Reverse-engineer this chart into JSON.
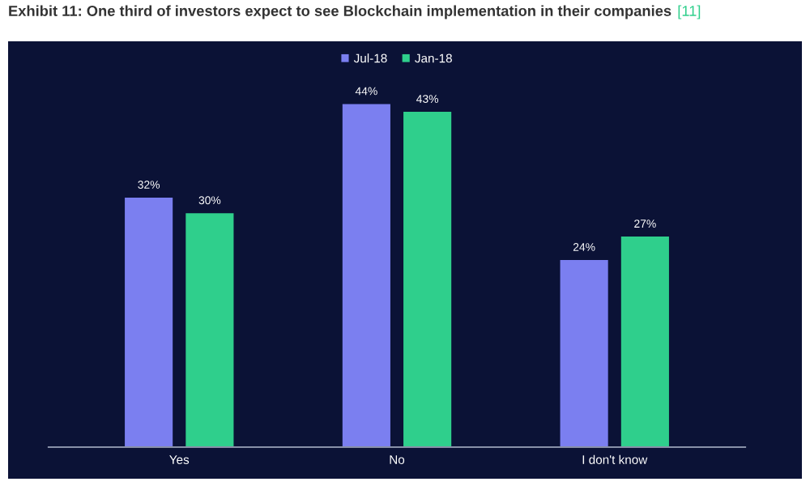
{
  "chart_data": {
    "type": "bar",
    "title": "Exhibit 11: One third of investors expect to see Blockchain implementation in their companies",
    "annotations": [
      "[11]"
    ],
    "categories": [
      "Yes",
      "No",
      "I don't know"
    ],
    "series": [
      {
        "name": "Jul-18",
        "color": "#7b7ff0",
        "values": [
          32,
          44,
          24
        ],
        "value_labels": [
          "32%",
          "44%",
          "24%"
        ]
      },
      {
        "name": "Jan-18",
        "color": "#2fcf8c",
        "values": [
          30,
          43,
          27
        ],
        "value_labels": [
          "30%",
          "43%",
          "27%"
        ]
      }
    ],
    "legend": "top",
    "grid": false
  }
}
